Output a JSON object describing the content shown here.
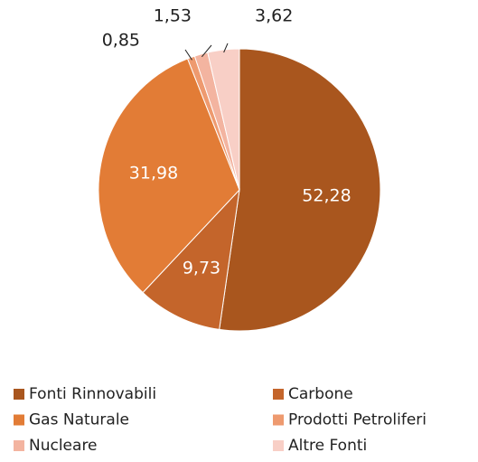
{
  "chart_data": {
    "type": "pie",
    "categories": [
      "Fonti Rinnovabili",
      "Carbone",
      "Gas Naturale",
      "Prodotti Petroliferi",
      "Nucleare",
      "Altre Fonti"
    ],
    "values": [
      52.28,
      9.73,
      31.98,
      0.85,
      1.53,
      3.62
    ],
    "value_labels": [
      "52,28",
      "9,73",
      "31,98",
      "0,85",
      "1,53",
      "3,62"
    ],
    "colors": [
      "#a9561e",
      "#c4652b",
      "#e27c36",
      "#ee9a6f",
      "#f3b4a0",
      "#f8cfc6"
    ],
    "legend": "bottom"
  }
}
